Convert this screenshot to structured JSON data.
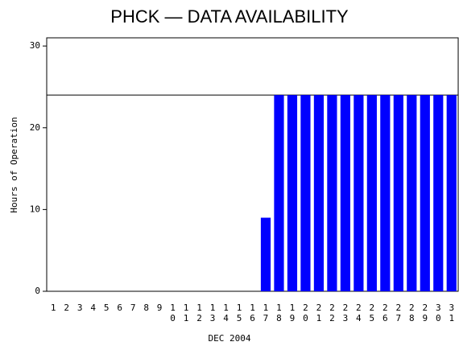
{
  "chart_data": {
    "type": "bar",
    "title": "PHCK — DATA AVAILABILITY",
    "xlabel": "DEC 2004",
    "ylabel": "Hours of Operation",
    "categories": [
      "1",
      "2",
      "3",
      "4",
      "5",
      "6",
      "7",
      "8",
      "9",
      "10",
      "11",
      "12",
      "13",
      "14",
      "15",
      "16",
      "17",
      "18",
      "19",
      "20",
      "21",
      "22",
      "23",
      "24",
      "25",
      "26",
      "27",
      "28",
      "29",
      "30",
      "31"
    ],
    "values": [
      0,
      0,
      0,
      0,
      0,
      0,
      0,
      0,
      0,
      0,
      0,
      0,
      0,
      0,
      0,
      0,
      9,
      24,
      24,
      24,
      24,
      24,
      24,
      24,
      24,
      24,
      24,
      24,
      24,
      24,
      24
    ],
    "color": "#0000ff",
    "reference_line": 24,
    "ylim": [
      0,
      31
    ],
    "yticks": [
      0,
      10,
      20,
      30
    ]
  }
}
